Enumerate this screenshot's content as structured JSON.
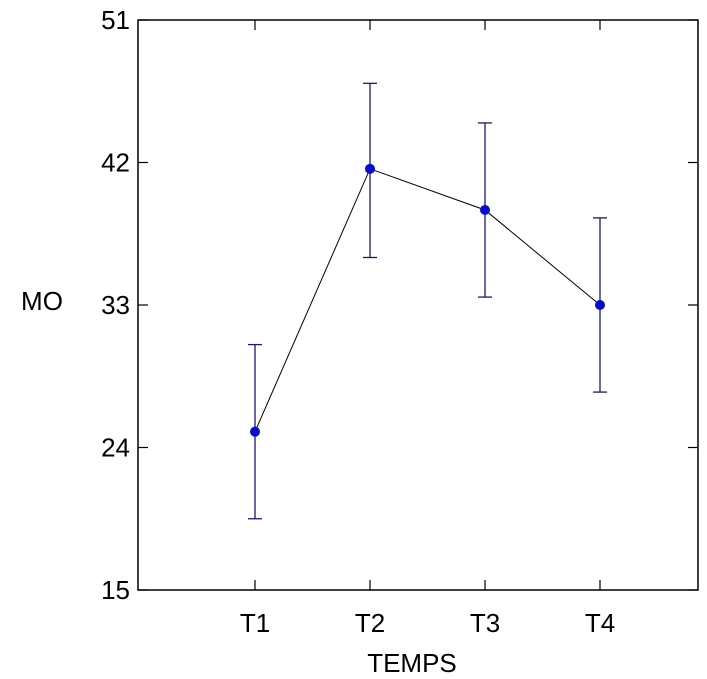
{
  "chart_data": {
    "type": "line",
    "title": "",
    "xlabel": "TEMPS",
    "ylabel": "MO",
    "categories": [
      "T1",
      "T2",
      "T3",
      "T4"
    ],
    "series": [
      {
        "values": [
          25.0,
          41.6,
          39.0,
          33.0
        ],
        "error_low": [
          19.5,
          36.0,
          33.5,
          27.5
        ],
        "error_high": [
          30.5,
          47.0,
          44.5,
          38.5
        ]
      }
    ],
    "ylim": [
      15,
      51
    ],
    "yticks": [
      15,
      24,
      33,
      42,
      51
    ],
    "grid": false,
    "colors": {
      "points": "#0a0ad0",
      "error_bars": "#1a1a6a",
      "line": "#000000",
      "axis": "#000000"
    }
  }
}
